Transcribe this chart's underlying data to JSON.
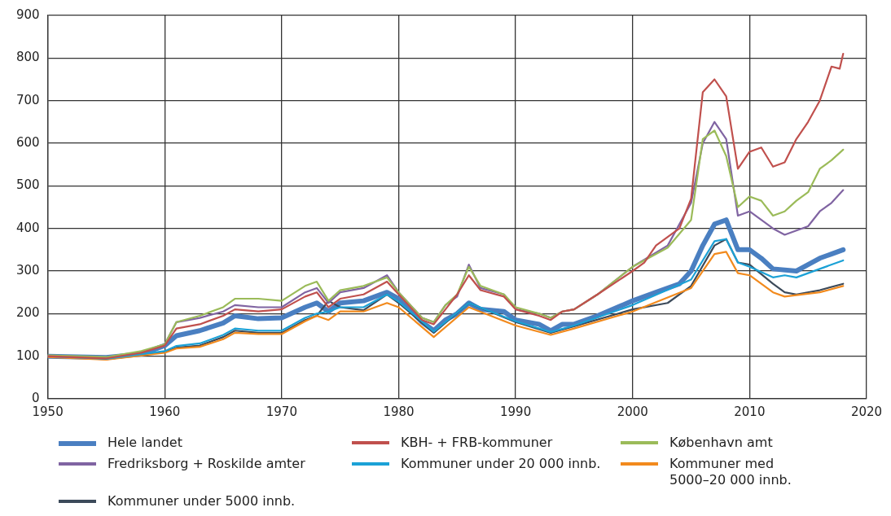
{
  "chart_data": {
    "type": "line",
    "xlim": [
      1950,
      2020
    ],
    "xticks": [
      1950,
      1960,
      1970,
      1980,
      1990,
      2000,
      2010,
      2020
    ],
    "ylim": [
      0,
      900
    ],
    "yticks": [
      0,
      100,
      200,
      300,
      400,
      500,
      600,
      700,
      800,
      900
    ],
    "grid": true,
    "legend": "bottom",
    "marker": "none",
    "line_style": "solid",
    "series": [
      {
        "name": "Hele landet",
        "color": "#4a7fc1",
        "x": [
          1950,
          1955,
          1958,
          1960,
          1961,
          1963,
          1965,
          1966,
          1968,
          1970,
          1972,
          1973,
          1974,
          1975,
          1977,
          1979,
          1980,
          1982,
          1983,
          1984,
          1985,
          1986,
          1987,
          1989,
          1990,
          1992,
          1993,
          1994,
          1995,
          1997,
          2000,
          2002,
          2004,
          2005,
          2006,
          2007,
          2008,
          2009,
          2010,
          2011,
          2012,
          2014,
          2015,
          2016,
          2017,
          2018
        ],
        "values": [
          100,
          97,
          105,
          125,
          148,
          160,
          178,
          195,
          188,
          190,
          215,
          225,
          205,
          225,
          230,
          250,
          235,
          180,
          160,
          185,
          200,
          225,
          210,
          205,
          185,
          175,
          160,
          175,
          175,
          195,
          230,
          250,
          270,
          300,
          360,
          410,
          420,
          350,
          350,
          330,
          305,
          300,
          315,
          330,
          340,
          350
        ]
      },
      {
        "name": "KBH- + FRB-kommuner",
        "color": "#c0504d",
        "x": [
          1950,
          1955,
          1958,
          1960,
          1961,
          1963,
          1965,
          1966,
          1968,
          1970,
          1972,
          1973,
          1974,
          1975,
          1977,
          1979,
          1980,
          1982,
          1983,
          1984,
          1985,
          1986,
          1987,
          1989,
          1990,
          1992,
          1993,
          1994,
          1995,
          1997,
          2000,
          2001,
          2002,
          2003,
          2004,
          2005,
          2006,
          2007,
          2008,
          2009,
          2010,
          2011,
          2012,
          2013,
          2014,
          2015,
          2016,
          2017,
          2017.7,
          2018
        ],
        "values": [
          100,
          95,
          108,
          125,
          165,
          175,
          195,
          210,
          205,
          210,
          240,
          250,
          215,
          235,
          245,
          275,
          245,
          185,
          175,
          210,
          245,
          290,
          255,
          240,
          210,
          195,
          185,
          205,
          210,
          245,
          300,
          320,
          360,
          380,
          400,
          470,
          720,
          750,
          710,
          540,
          580,
          590,
          545,
          555,
          610,
          650,
          700,
          780,
          775,
          810
        ]
      },
      {
        "name": "København amt",
        "color": "#9bbb59",
        "x": [
          1950,
          1955,
          1958,
          1960,
          1961,
          1963,
          1965,
          1966,
          1968,
          1970,
          1972,
          1973,
          1974,
          1975,
          1977,
          1979,
          1980,
          1982,
          1983,
          1984,
          1985,
          1986,
          1987,
          1989,
          1990,
          1992,
          1993,
          1994,
          1995,
          1997,
          2000,
          2003,
          2005,
          2006,
          2007,
          2008,
          2009,
          2010,
          2011,
          2012,
          2013,
          2014,
          2015,
          2016,
          2017,
          2018
        ],
        "values": [
          102,
          98,
          112,
          128,
          180,
          195,
          215,
          235,
          235,
          230,
          265,
          275,
          230,
          255,
          265,
          285,
          250,
          190,
          180,
          220,
          245,
          310,
          265,
          245,
          215,
          200,
          190,
          205,
          210,
          245,
          310,
          355,
          420,
          610,
          630,
          570,
          450,
          475,
          465,
          430,
          440,
          465,
          485,
          540,
          560,
          585
        ]
      },
      {
        "name": "Fredriksborg + Roskilde amter",
        "color": "#8064a2",
        "x": [
          1950,
          1955,
          1958,
          1960,
          1961,
          1963,
          1965,
          1966,
          1968,
          1970,
          1972,
          1973,
          1974,
          1975,
          1977,
          1979,
          1980,
          1982,
          1983,
          1984,
          1985,
          1986,
          1987,
          1989,
          1990,
          1992,
          1993,
          1994,
          1995,
          1997,
          2000,
          2003,
          2005,
          2006,
          2007,
          2008,
          2009,
          2010,
          2011,
          2012,
          2013,
          2014,
          2015,
          2016,
          2017,
          2018
        ],
        "values": [
          100,
          96,
          110,
          128,
          180,
          190,
          205,
          220,
          215,
          215,
          250,
          260,
          225,
          250,
          260,
          290,
          250,
          190,
          180,
          220,
          240,
          315,
          260,
          245,
          210,
          200,
          190,
          205,
          210,
          245,
          310,
          360,
          460,
          600,
          650,
          610,
          430,
          440,
          420,
          400,
          385,
          395,
          405,
          440,
          460,
          490
        ]
      },
      {
        "name": "Kommuner under 20 000 innb.",
        "color": "#1ba1d6",
        "x": [
          1950,
          1955,
          1960,
          1961,
          1963,
          1965,
          1966,
          1968,
          1970,
          1972,
          1973,
          1974,
          1975,
          1977,
          1979,
          1980,
          1983,
          1986,
          1990,
          1993,
          1995,
          2000,
          2005,
          2007,
          2008,
          2009,
          2010,
          2012,
          2013,
          2014,
          2016,
          2018
        ],
        "values": [
          100,
          94,
          112,
          124,
          130,
          150,
          165,
          160,
          160,
          190,
          200,
          205,
          215,
          215,
          245,
          228,
          158,
          225,
          182,
          157,
          172,
          220,
          280,
          370,
          375,
          320,
          310,
          285,
          290,
          285,
          305,
          325
        ]
      },
      {
        "name": "Kommuner med\n5000–20 000 innb.",
        "color": "#f28a1d",
        "x": [
          1950,
          1955,
          1960,
          1961,
          1963,
          1965,
          1966,
          1968,
          1970,
          1972,
          1973,
          1974,
          1975,
          1977,
          1979,
          1980,
          1983,
          1986,
          1990,
          1993,
          1995,
          2000,
          2005,
          2007,
          2008,
          2009,
          2010,
          2012,
          2013,
          2016,
          2018
        ],
        "values": [
          98,
          92,
          108,
          118,
          122,
          140,
          155,
          152,
          152,
          182,
          195,
          185,
          205,
          205,
          225,
          215,
          145,
          215,
          172,
          150,
          165,
          205,
          260,
          340,
          345,
          295,
          290,
          250,
          240,
          250,
          265
        ]
      },
      {
        "name": "Kommuner under 5000 innb.",
        "color": "#3c4a5a",
        "x": [
          1950,
          1955,
          1960,
          1961,
          1963,
          1965,
          1966,
          1968,
          1970,
          1972,
          1973,
          1974,
          1975,
          1977,
          1979,
          1980,
          1983,
          1986,
          1990,
          1993,
          1995,
          2000,
          2003,
          2005,
          2007,
          2008,
          2009,
          2010,
          2012,
          2013,
          2014,
          2016,
          2018
        ],
        "values": [
          100,
          93,
          110,
          120,
          125,
          145,
          160,
          155,
          155,
          185,
          195,
          230,
          215,
          208,
          245,
          225,
          155,
          225,
          180,
          155,
          170,
          210,
          225,
          265,
          360,
          375,
          320,
          315,
          270,
          250,
          245,
          255,
          270
        ]
      }
    ]
  }
}
